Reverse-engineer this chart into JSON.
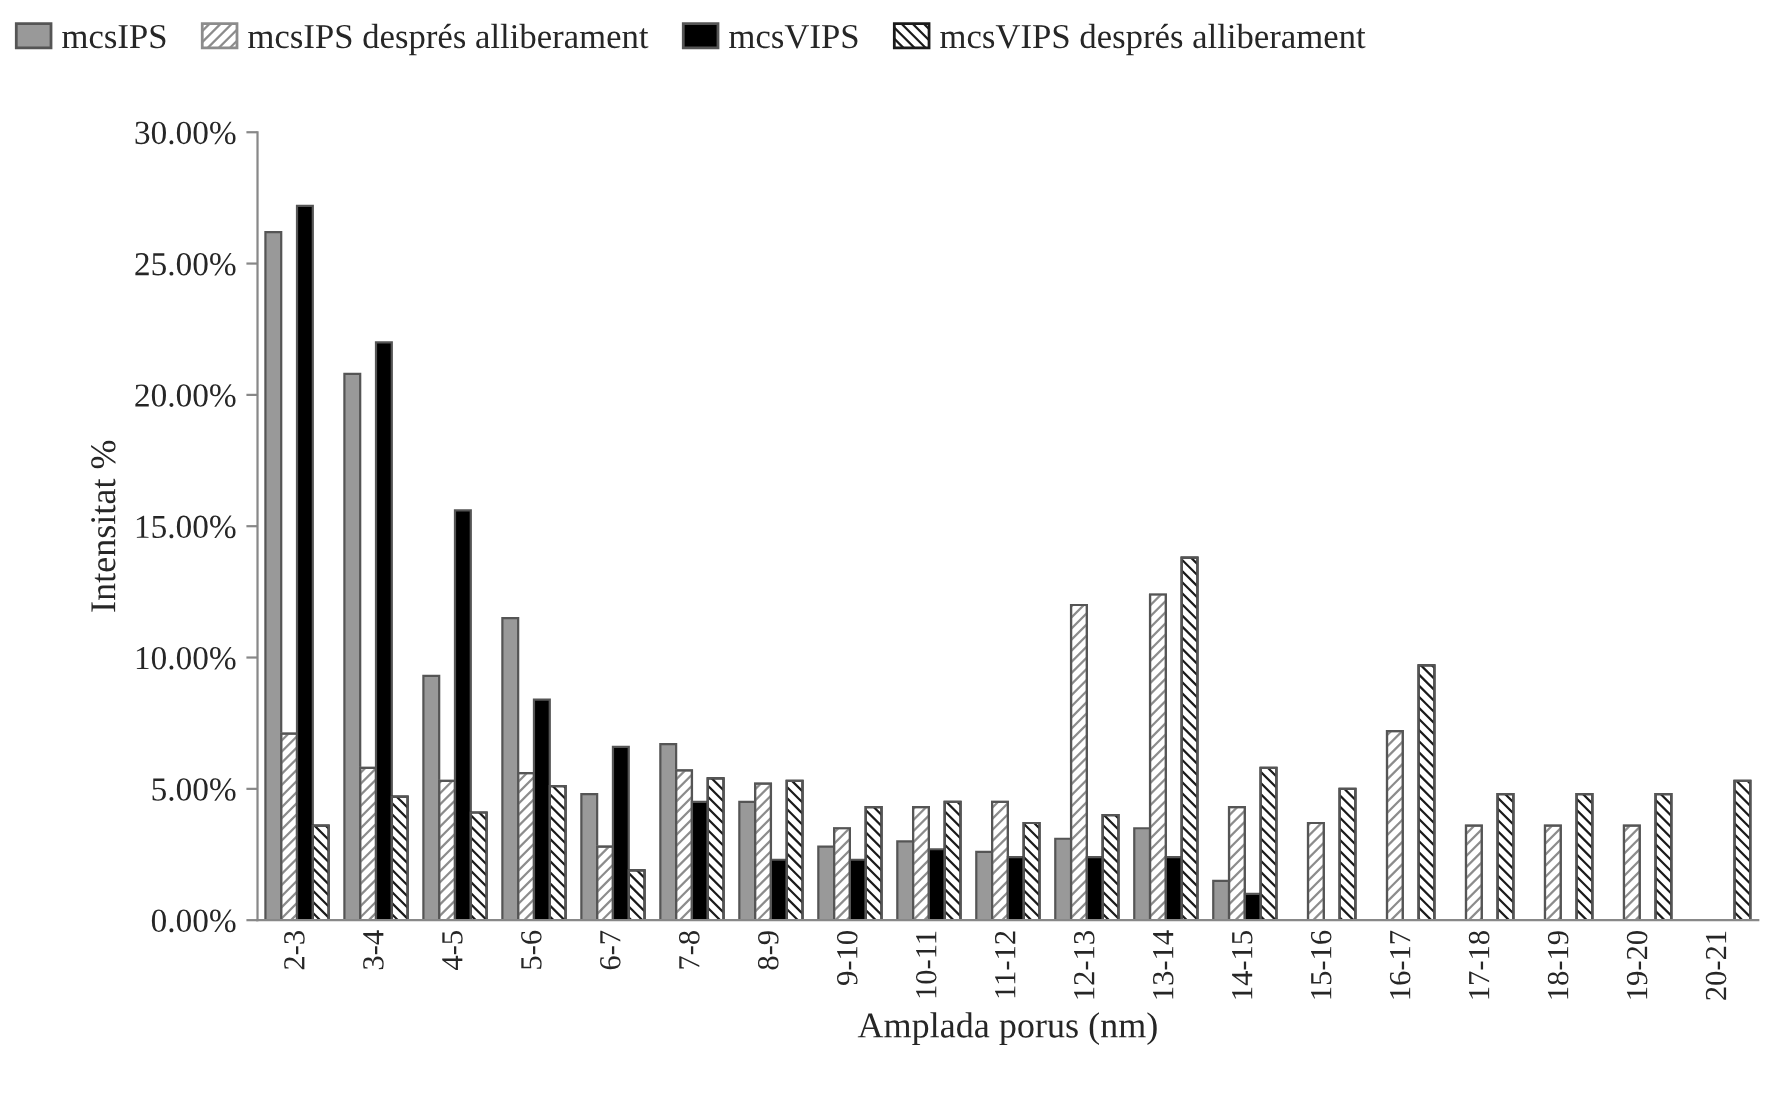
{
  "chart_data": {
    "type": "bar",
    "xlabel": "Amplada porus (nm)",
    "ylabel": "Intensitat %",
    "categories": [
      "2-3",
      "3-4",
      "4-5",
      "5-6",
      "6-7",
      "7-8",
      "8-9",
      "9-10",
      "10-11",
      "11-12",
      "12-13",
      "13-14",
      "14-15",
      "15-16",
      "16-17",
      "17-18",
      "18-19",
      "19-20",
      "20-21"
    ],
    "series": [
      {
        "name": "mcsIPS",
        "color": "#999999",
        "values": [
          26.2,
          20.8,
          9.3,
          11.5,
          4.8,
          6.7,
          4.5,
          2.8,
          3.0,
          2.6,
          3.1,
          3.5,
          1.5,
          null,
          null,
          null,
          null,
          null,
          null
        ]
      },
      {
        "name": "mcsIPS després alliberament",
        "color": "#8c8c8c",
        "values": [
          7.1,
          5.8,
          5.3,
          5.6,
          2.8,
          5.7,
          5.2,
          3.5,
          4.3,
          4.5,
          12.0,
          12.4,
          4.3,
          3.7,
          7.2,
          3.6,
          3.6,
          3.6,
          null
        ]
      },
      {
        "name": "mcsVIPS",
        "color": "#000000",
        "values": [
          27.2,
          22.0,
          15.6,
          8.4,
          6.6,
          4.5,
          2.3,
          2.3,
          2.7,
          2.4,
          2.4,
          2.4,
          1.0,
          null,
          null,
          null,
          null,
          null,
          null
        ]
      },
      {
        "name": "mcsVIPS després alliberament",
        "color": "#1a1a1a",
        "values": [
          3.6,
          4.7,
          4.1,
          5.1,
          1.9,
          5.4,
          5.3,
          4.3,
          4.5,
          3.7,
          4.0,
          13.8,
          5.8,
          5.0,
          9.7,
          4.8,
          4.8,
          4.8,
          5.3
        ]
      }
    ],
    "ylim": [
      0,
      30
    ],
    "yticks": [
      {
        "value": 0,
        "label": "0.00%"
      },
      {
        "value": 5,
        "label": "5.00%"
      },
      {
        "value": 10,
        "label": "10.00%"
      },
      {
        "value": 15,
        "label": "15.00%"
      },
      {
        "value": 20,
        "label": "20.00%"
      },
      {
        "value": 25,
        "label": "25.00%"
      },
      {
        "value": 30,
        "label": "30.00%"
      }
    ],
    "grid": false,
    "legend": "top"
  }
}
